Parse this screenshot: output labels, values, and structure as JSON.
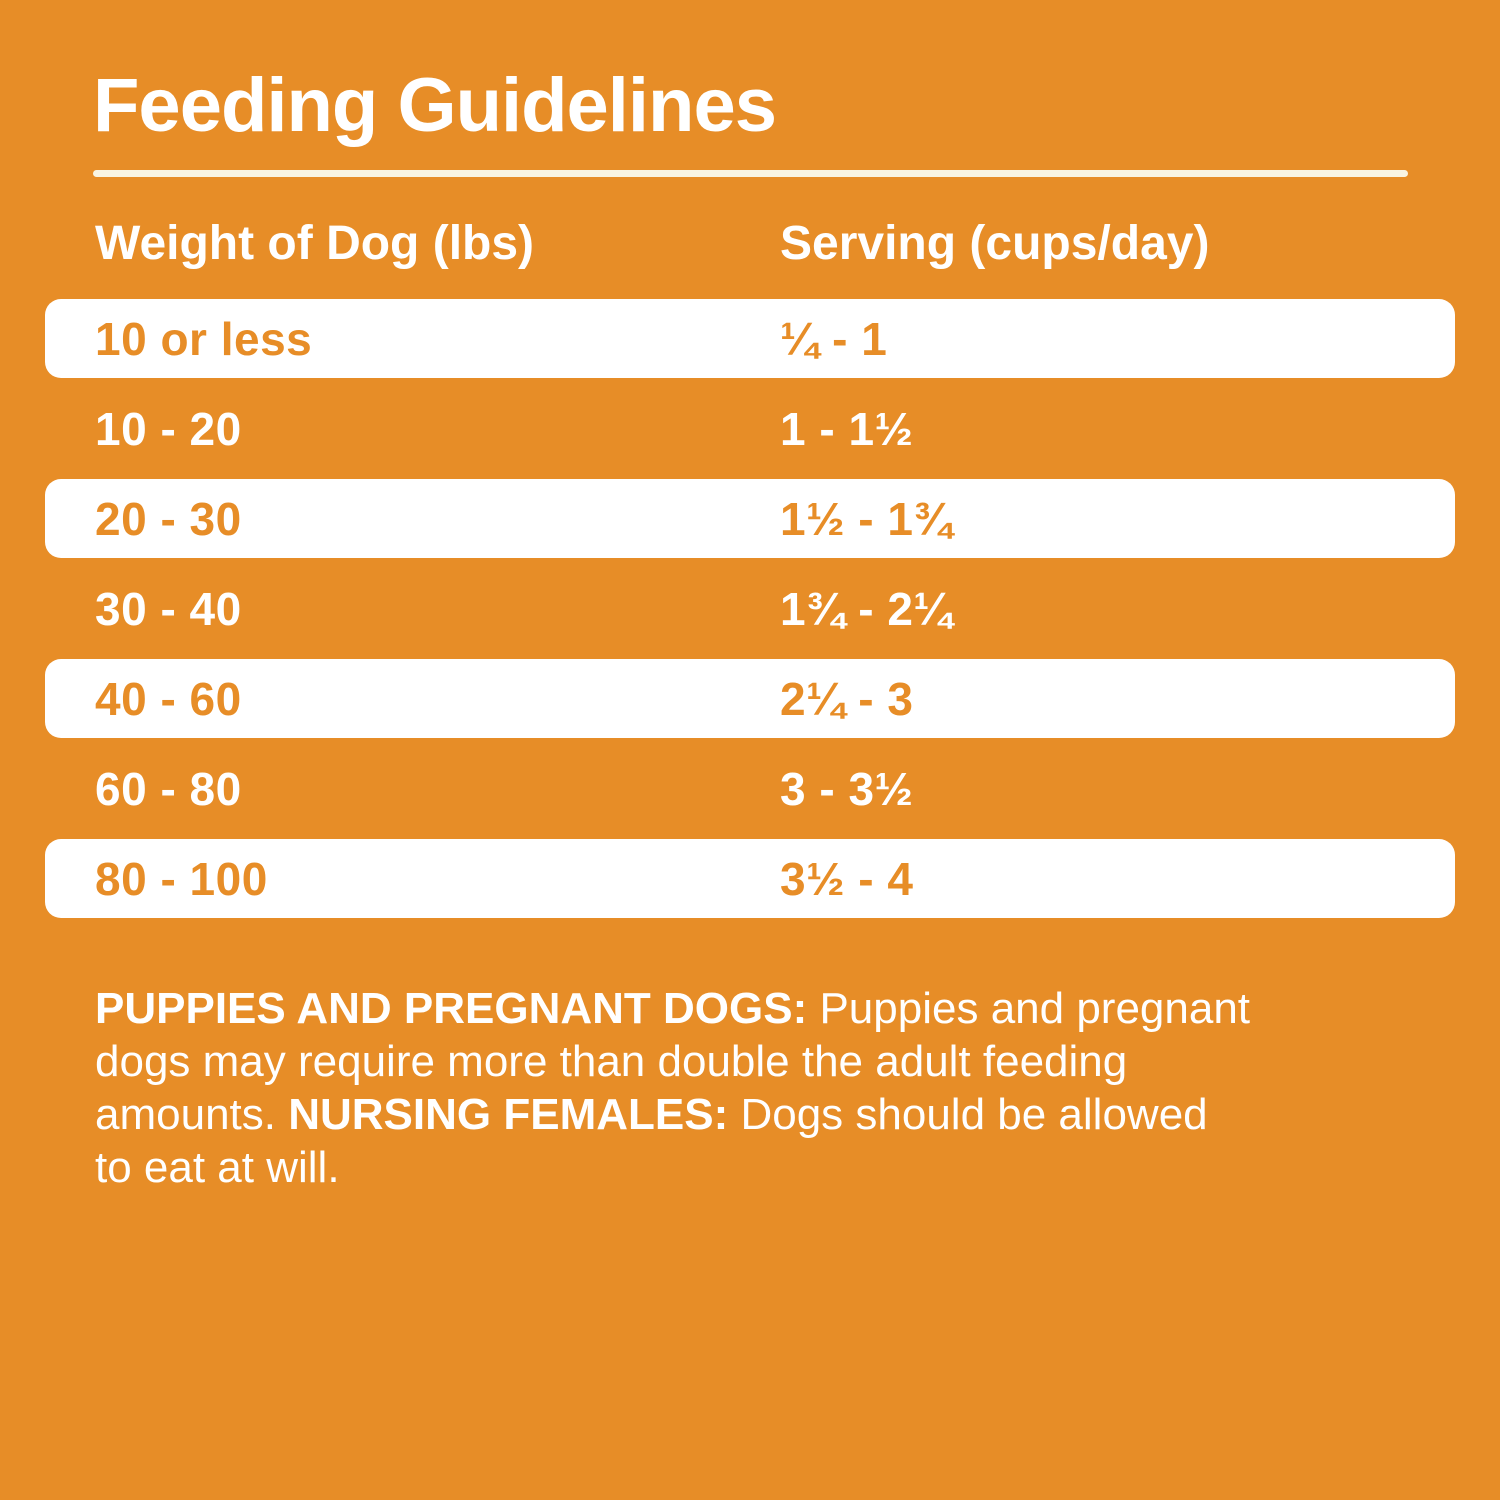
{
  "page": {
    "title": "Feeding Guidelines",
    "background_color": "#E78D27",
    "card_color": "#FFFFFF",
    "accent_text_color": "#E78D27",
    "rule_color": "#F9F4E2"
  },
  "table": {
    "columns": [
      "Weight of Dog (lbs)",
      "Serving (cups/day)"
    ],
    "rows": [
      {
        "weight": "10 or less",
        "serving": "¼ - 1"
      },
      {
        "weight": "10 - 20",
        "serving": "1 - 1½"
      },
      {
        "weight": "20 - 30",
        "serving": "1½ - 1¾"
      },
      {
        "weight": "30 - 40",
        "serving": "1¾ - 2¼"
      },
      {
        "weight": "40 - 60",
        "serving": "2¼ - 3"
      },
      {
        "weight": "60 - 80",
        "serving": "3 - 3½"
      },
      {
        "weight": "80 - 100",
        "serving": "3½ - 4"
      }
    ]
  },
  "footer": {
    "lines": [
      {
        "segments": [
          {
            "text": "PUPPIES AND PREGNANT DOGS:",
            "bold": true
          },
          {
            "text": " Puppies and pregnant",
            "bold": false
          }
        ]
      },
      {
        "segments": [
          {
            "text": "dogs may require more than double the adult feeding",
            "bold": false
          }
        ]
      },
      {
        "segments": [
          {
            "text": "amounts. ",
            "bold": false
          },
          {
            "text": "NURSING FEMALES:",
            "bold": true
          },
          {
            "text": " Dogs should be allowed",
            "bold": false
          }
        ]
      },
      {
        "segments": [
          {
            "text": "to eat at will.",
            "bold": false
          }
        ]
      }
    ]
  },
  "chart_data": {
    "type": "table",
    "title": "Feeding Guidelines",
    "columns": [
      "Weight of Dog (lbs)",
      "Serving (cups/day)"
    ],
    "rows": [
      [
        "10 or less",
        "¼ - 1"
      ],
      [
        "10 - 20",
        "1 - 1½"
      ],
      [
        "20 - 30",
        "1½ - 1¾"
      ],
      [
        "30 - 40",
        "1¾ - 2¼"
      ],
      [
        "40 - 60",
        "2¼ - 3"
      ],
      [
        "60 - 80",
        "3 - 3½"
      ],
      [
        "80 - 100",
        "3½ - 4"
      ]
    ],
    "notes": "PUPPIES AND PREGNANT DOGS: Puppies and pregnant dogs may require more than double the adult feeding amounts. NURSING FEMALES: Dogs should be allowed to eat at will."
  }
}
